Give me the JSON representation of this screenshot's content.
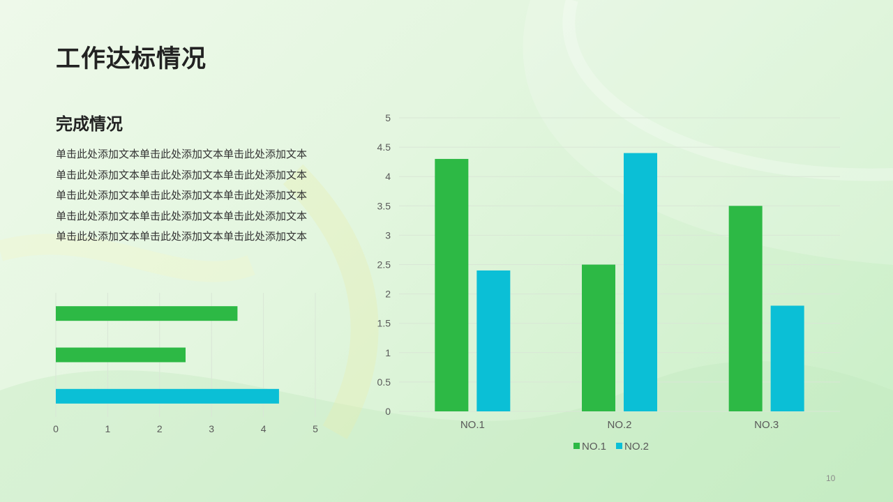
{
  "slide": {
    "title": "工作达标情况",
    "subtitle": "完成情况",
    "body": "单击此处添加文本单击此处添加文本单击此处添加文本单击此处添加文本单击此处添加文本单击此处添加文本单击此处添加文本单击此处添加文本单击此处添加文本单击此处添加文本单击此处添加文本单击此处添加文本单击此处添加文本单击此处添加文本单击此处添加文本",
    "page_number": "10"
  },
  "colors": {
    "green": "#2db945",
    "cyan": "#0bbfd6",
    "grid": "#d9e6d6",
    "axis_text": "#595959"
  },
  "chart_data": [
    {
      "type": "bar",
      "orientation": "horizontal",
      "bars": [
        {
          "value": 3.5,
          "color": "green"
        },
        {
          "value": 2.5,
          "color": "green"
        },
        {
          "value": 4.3,
          "color": "cyan"
        }
      ],
      "xlim": [
        0,
        5
      ],
      "xticks": [
        0,
        1,
        2,
        3,
        4,
        5
      ],
      "grid": "vertical"
    },
    {
      "type": "bar",
      "orientation": "vertical",
      "categories": [
        "NO.1",
        "NO.2",
        "NO.3"
      ],
      "series": [
        {
          "name": "NO.1",
          "color": "green",
          "values": [
            4.3,
            2.5,
            3.5
          ]
        },
        {
          "name": "NO.2",
          "color": "cyan",
          "values": [
            2.4,
            4.4,
            1.8
          ]
        }
      ],
      "ylim": [
        0,
        5
      ],
      "yticks": [
        "0",
        "0.5",
        "1",
        "1.5",
        "2",
        "2.5",
        "3",
        "3.5",
        "4",
        "4.5",
        "5"
      ],
      "grid": "horizontal",
      "legend": "bottom"
    }
  ]
}
